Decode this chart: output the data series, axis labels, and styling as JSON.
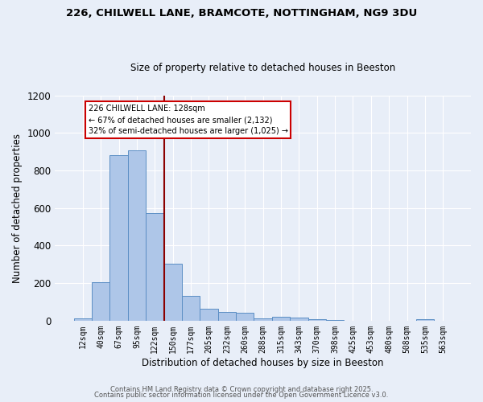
{
  "title1": "226, CHILWELL LANE, BRAMCOTE, NOTTINGHAM, NG9 3DU",
  "title2": "Size of property relative to detached houses in Beeston",
  "xlabel": "Distribution of detached houses by size in Beeston",
  "ylabel": "Number of detached properties",
  "categories": [
    "12sqm",
    "40sqm",
    "67sqm",
    "95sqm",
    "122sqm",
    "150sqm",
    "177sqm",
    "205sqm",
    "232sqm",
    "260sqm",
    "288sqm",
    "315sqm",
    "343sqm",
    "370sqm",
    "398sqm",
    "425sqm",
    "453sqm",
    "480sqm",
    "508sqm",
    "535sqm",
    "563sqm"
  ],
  "values": [
    10,
    205,
    880,
    905,
    575,
    305,
    130,
    65,
    48,
    42,
    12,
    22,
    18,
    8,
    5,
    0,
    0,
    0,
    0,
    8,
    0
  ],
  "bar_color": "#aec6e8",
  "bar_edge_color": "#5b8ec4",
  "bg_color": "#e8eef8",
  "grid_color": "#ffffff",
  "vline_x": 4.5,
  "vline_color": "#8b0000",
  "annotation_text": "226 CHILWELL LANE: 128sqm\n← 67% of detached houses are smaller (2,132)\n32% of semi-detached houses are larger (1,025) →",
  "annotation_box_color": "white",
  "annotation_box_edge": "#cc0000",
  "ylim": [
    0,
    1200
  ],
  "yticks": [
    0,
    200,
    400,
    600,
    800,
    1000,
    1200
  ],
  "footer1": "Contains HM Land Registry data © Crown copyright and database right 2025.",
  "footer2": "Contains public sector information licensed under the Open Government Licence v3.0."
}
